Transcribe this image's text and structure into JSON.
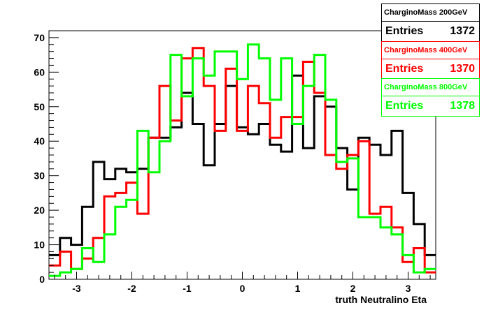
{
  "chart_data": {
    "type": "histogram",
    "title": "",
    "xlabel": "truth Neutralino Eta",
    "ylabel": "",
    "xlim": [
      -3.5,
      3.5
    ],
    "ylim": [
      0,
      72
    ],
    "x_ticks": [
      -3,
      -2,
      -1,
      0,
      1,
      2,
      3
    ],
    "y_ticks": [
      0,
      10,
      20,
      30,
      40,
      50,
      60,
      70
    ],
    "bin_edges": [
      -3.5,
      -3.3,
      -3.1,
      -2.9,
      -2.7,
      -2.5,
      -2.3,
      -2.1,
      -1.9,
      -1.7,
      -1.5,
      -1.3,
      -1.1,
      -0.9,
      -0.7,
      -0.5,
      -0.3,
      -0.1,
      0.1,
      0.3,
      0.5,
      0.7,
      0.9,
      1.1,
      1.3,
      1.5,
      1.7,
      1.9,
      2.1,
      2.3,
      2.5,
      2.7,
      2.9,
      3.1,
      3.3,
      3.5
    ],
    "series": [
      {
        "name": "CharginoMass 200GeV",
        "entries": "1372",
        "color": "#000000",
        "values": [
          7,
          12,
          10,
          21,
          34,
          29,
          32,
          31,
          32,
          41,
          41,
          44,
          54,
          45,
          33,
          45,
          56,
          44,
          42,
          45,
          39,
          37,
          59,
          38,
          53,
          50,
          38,
          26,
          41,
          39,
          36,
          43,
          25,
          16,
          7
        ]
      },
      {
        "name": "CharginoMass 400GeV",
        "entries": "1370",
        "color": "#ff0000",
        "values": [
          4,
          8,
          3,
          6,
          12,
          24,
          25,
          28,
          19,
          41,
          56,
          46,
          64,
          67,
          56,
          43,
          61,
          43,
          56,
          51,
          41,
          47,
          47,
          63,
          54,
          36,
          32,
          36,
          40,
          19,
          21,
          15,
          5,
          9,
          2
        ]
      },
      {
        "name": "CharginoMass 800GeV",
        "entries": "1378",
        "color": "#00ff00",
        "values": [
          1,
          2,
          3,
          9,
          5,
          13,
          21,
          23,
          43,
          31,
          40,
          65,
          53,
          64,
          59,
          66,
          66,
          58,
          68,
          64,
          52,
          64,
          45,
          56,
          65,
          52,
          34,
          35,
          18,
          18,
          15,
          13,
          7,
          2,
          3
        ]
      }
    ]
  },
  "stats_label": "Entries"
}
